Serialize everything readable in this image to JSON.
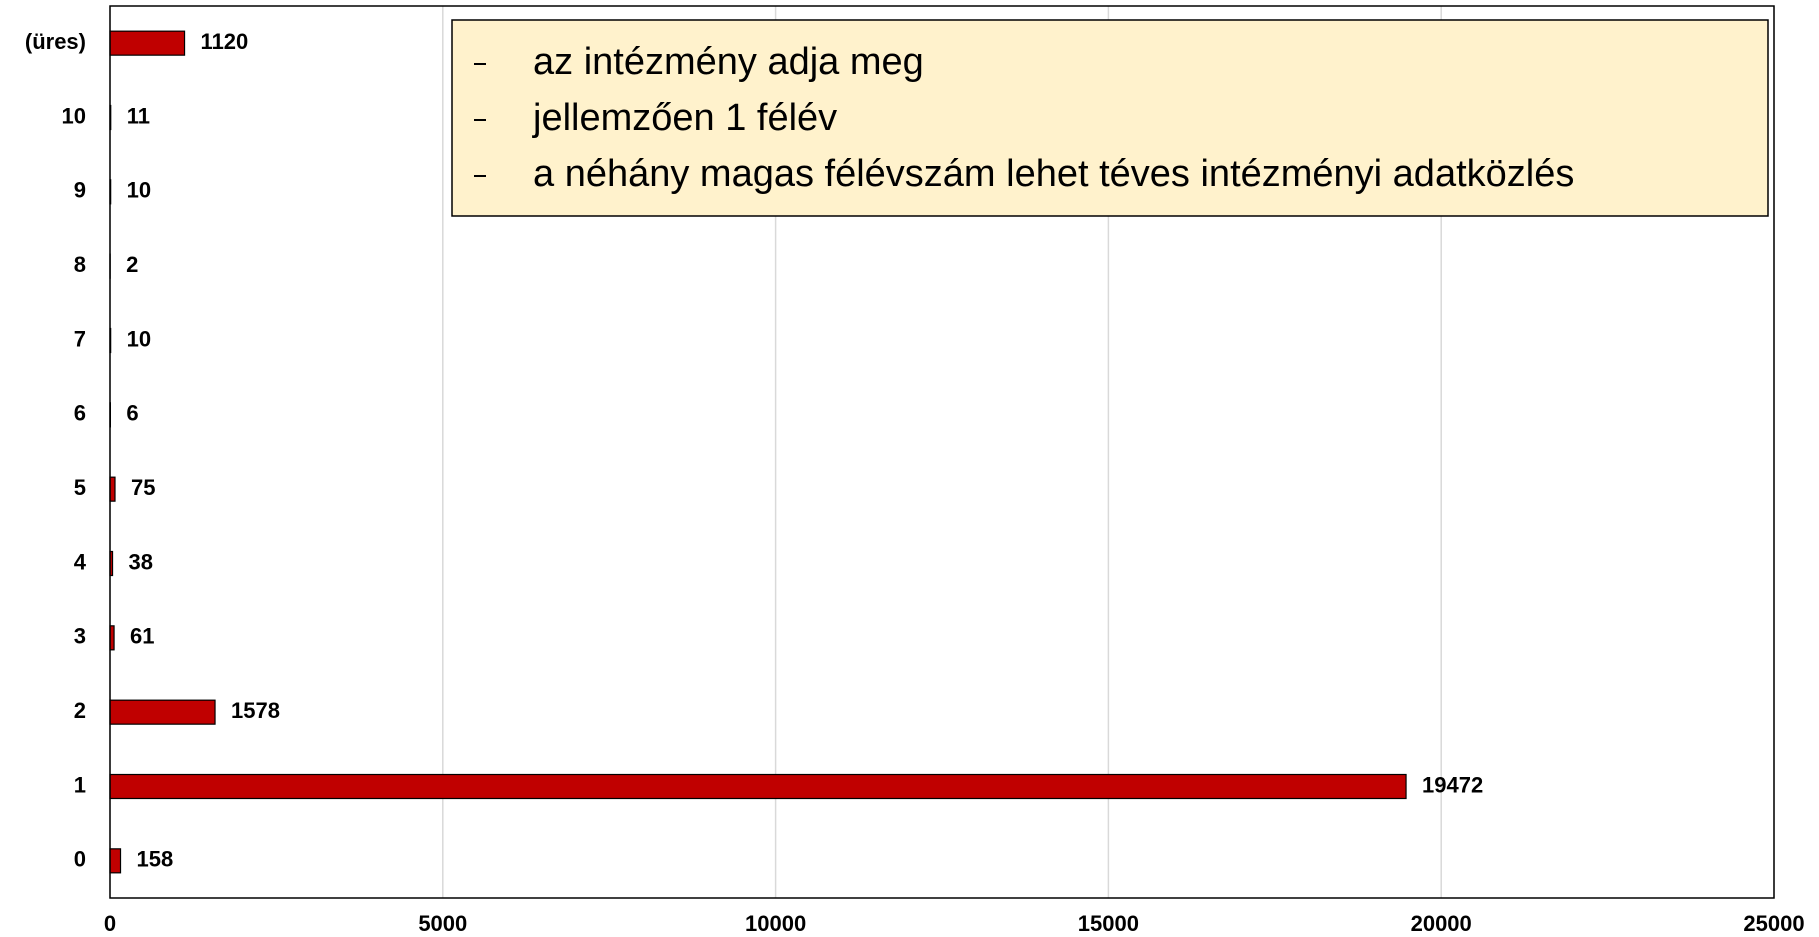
{
  "chart_data": {
    "type": "bar",
    "orientation": "horizontal",
    "categories": [
      "0",
      "1",
      "2",
      "3",
      "4",
      "5",
      "6",
      "7",
      "8",
      "9",
      "10",
      "(üres)"
    ],
    "values": [
      158,
      19472,
      1578,
      61,
      38,
      75,
      6,
      10,
      2,
      10,
      11,
      1120
    ],
    "color": "#c00000",
    "xlim": [
      0,
      25000
    ],
    "xticks": [
      0,
      5000,
      10000,
      15000,
      20000,
      25000
    ],
    "grid": true,
    "annotations": [
      "az intézmény adja meg",
      "jellemzően 1 félév",
      "a néhány magas félévszám lehet téves intézményi adatközlés"
    ]
  }
}
